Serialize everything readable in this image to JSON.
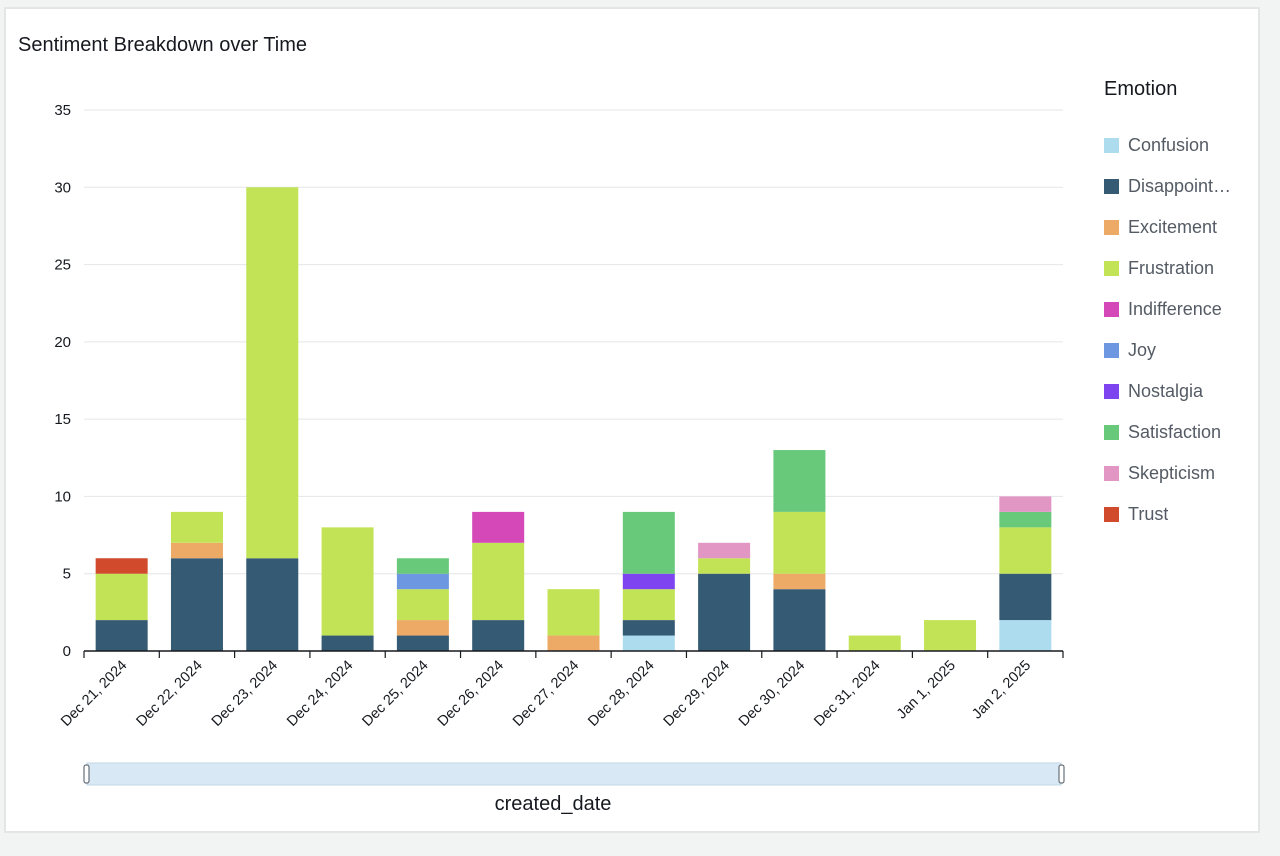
{
  "title": "Sentiment Breakdown over Time",
  "legend": {
    "title": "Emotion",
    "items": [
      {
        "label": "Confusion",
        "color": "#aedcef"
      },
      {
        "label": "Disappoint…",
        "color": "#355a73"
      },
      {
        "label": "Excitement",
        "color": "#ecaa66"
      },
      {
        "label": "Frustration",
        "color": "#c3e356"
      },
      {
        "label": "Indifference",
        "color": "#d448b8"
      },
      {
        "label": "Joy",
        "color": "#6d97e0"
      },
      {
        "label": "Nostalgia",
        "color": "#7e44f0"
      },
      {
        "label": "Satisfaction",
        "color": "#68c97b"
      },
      {
        "label": "Skepticism",
        "color": "#e196c4"
      },
      {
        "label": "Trust",
        "color": "#d04a2b"
      }
    ]
  },
  "chart_data": {
    "type": "bar",
    "stacked": true,
    "title": "Sentiment Breakdown over Time",
    "xlabel": "created_date",
    "ylabel": "",
    "ylim": [
      0,
      35
    ],
    "yticks": [
      0,
      5,
      10,
      15,
      20,
      25,
      30,
      35
    ],
    "grid": true,
    "legend_position": "right",
    "categories": [
      "Dec 21, 2024",
      "Dec 22, 2024",
      "Dec 23, 2024",
      "Dec 24, 2024",
      "Dec 25, 2024",
      "Dec 26, 2024",
      "Dec 27, 2024",
      "Dec 28, 2024",
      "Dec 29, 2024",
      "Dec 30, 2024",
      "Dec 31, 2024",
      "Jan 1, 2025",
      "Jan 2, 2025"
    ],
    "series": [
      {
        "name": "Confusion",
        "color": "#aedcef",
        "values": [
          0,
          0,
          0,
          0,
          0,
          0,
          0,
          1,
          0,
          0,
          0,
          0,
          2
        ]
      },
      {
        "name": "Disappointment",
        "color": "#355a73",
        "values": [
          2,
          6,
          6,
          1,
          1,
          2,
          0,
          1,
          5,
          4,
          0,
          0,
          3
        ]
      },
      {
        "name": "Excitement",
        "color": "#ecaa66",
        "values": [
          0,
          1,
          0,
          0,
          1,
          0,
          1,
          0,
          0,
          1,
          0,
          0,
          0
        ]
      },
      {
        "name": "Frustration",
        "color": "#c3e356",
        "values": [
          3,
          2,
          24,
          7,
          2,
          5,
          3,
          2,
          1,
          4,
          1,
          2,
          3
        ]
      },
      {
        "name": "Indifference",
        "color": "#d448b8",
        "values": [
          0,
          0,
          0,
          0,
          0,
          2,
          0,
          0,
          0,
          0,
          0,
          0,
          0
        ]
      },
      {
        "name": "Joy",
        "color": "#6d97e0",
        "values": [
          0,
          0,
          0,
          0,
          1,
          0,
          0,
          0,
          0,
          0,
          0,
          0,
          0
        ]
      },
      {
        "name": "Nostalgia",
        "color": "#7e44f0",
        "values": [
          0,
          0,
          0,
          0,
          0,
          0,
          0,
          1,
          0,
          0,
          0,
          0,
          0
        ]
      },
      {
        "name": "Satisfaction",
        "color": "#68c97b",
        "values": [
          0,
          0,
          0,
          0,
          1,
          0,
          0,
          4,
          0,
          4,
          0,
          0,
          1
        ]
      },
      {
        "name": "Skepticism",
        "color": "#e196c4",
        "values": [
          0,
          0,
          0,
          0,
          0,
          0,
          0,
          0,
          1,
          0,
          0,
          0,
          1
        ]
      },
      {
        "name": "Trust",
        "color": "#d04a2b",
        "values": [
          1,
          0,
          0,
          0,
          0,
          0,
          0,
          0,
          0,
          0,
          0,
          0,
          0
        ]
      }
    ]
  }
}
